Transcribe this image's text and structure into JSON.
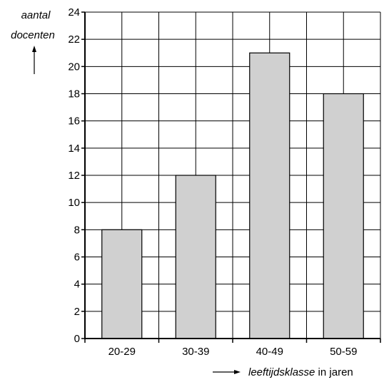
{
  "chart_data": {
    "type": "bar",
    "categories": [
      "20-29",
      "30-39",
      "40-49",
      "50-59"
    ],
    "values": [
      8,
      12,
      21,
      18
    ],
    "ylabel_line1": "aantal",
    "ylabel_line2": "docenten",
    "xlabel_italic": "leeftijdsklasse",
    "xlabel_rest": " in jaren",
    "ylim": [
      0,
      24
    ],
    "yticks": [
      0,
      2,
      4,
      6,
      8,
      10,
      12,
      14,
      16,
      18,
      20,
      22,
      24
    ],
    "grid": true,
    "bar_color": "#d0d0d0"
  }
}
